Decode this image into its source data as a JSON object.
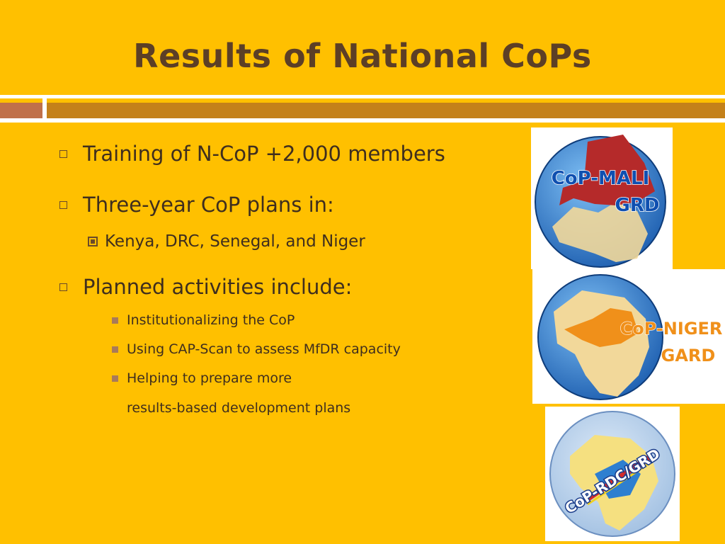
{
  "slide": {
    "title": "Results of National CoPs",
    "bullets": [
      {
        "text": "Training of N-CoP +2,000 members"
      },
      {
        "text": "Three-year CoP plans in:"
      },
      {
        "text": "Kenya, DRC, Senegal, and Niger"
      },
      {
        "text": "Planned activities include:"
      },
      {
        "text": "Institutionalizing the CoP"
      },
      {
        "text": "Using CAP-Scan to assess MfDR capacity"
      },
      {
        "text": "Helping to prepare more"
      },
      {
        "text": "results-based development plans"
      }
    ]
  },
  "logos": {
    "mali": {
      "line1": "CoP-MALI",
      "line2": "GRD"
    },
    "niger": {
      "line1": "CoP-NIGER",
      "line2": "GARD"
    },
    "rdc": {
      "line1": "CoP-RDC/GRD"
    }
  },
  "colors": {
    "background": "#FFC000",
    "title": "#5C3F26",
    "text": "#3F2E1E",
    "rule_bar": "#C4811A",
    "rule_block": "#C0704A",
    "logo_blue": "#2E7FD0",
    "mali_red": "#B52A2A",
    "niger_orange": "#F0901A"
  }
}
